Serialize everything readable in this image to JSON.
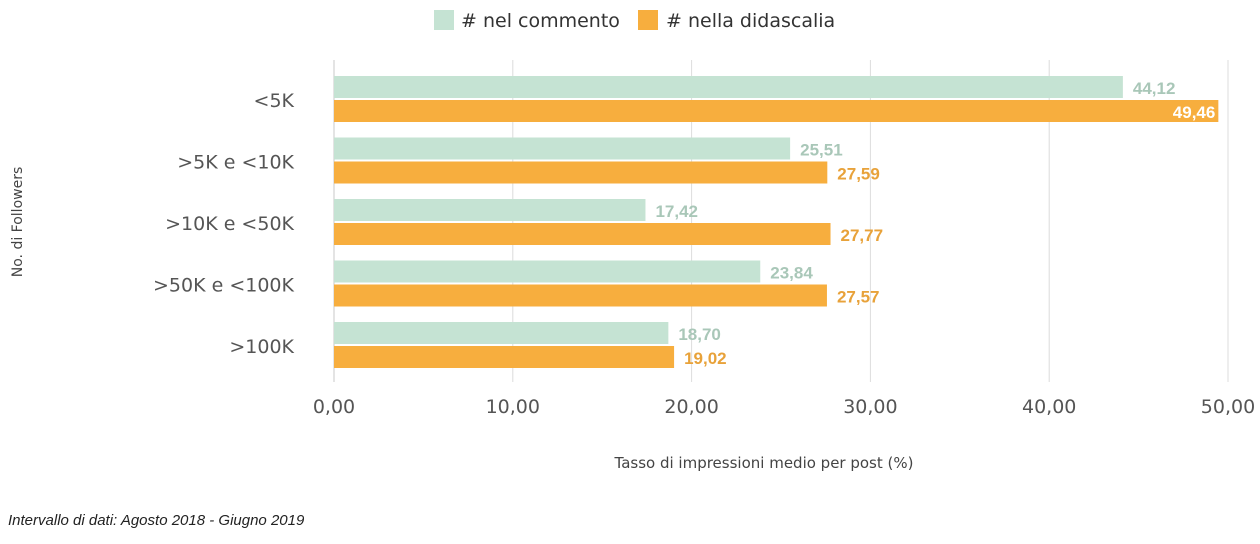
{
  "chart_data": {
    "type": "bar",
    "orientation": "horizontal",
    "categories": [
      "<5K",
      ">5K e <10K",
      ">10K e <50K",
      ">50K e  <100K",
      ">100K"
    ],
    "series": [
      {
        "name": "# nel commento",
        "values": [
          44.12,
          25.51,
          17.42,
          23.84,
          18.7
        ],
        "labels": [
          "44,12",
          "25,51",
          "17,42",
          "23,84",
          "18,70"
        ],
        "color": "#c5e3d3",
        "label_color": "#a9c7b8"
      },
      {
        "name": "# nella didascalia",
        "values": [
          49.46,
          27.59,
          27.77,
          27.57,
          19.02
        ],
        "labels": [
          "49,46",
          "27,59",
          "27,77",
          "27,57",
          "19,02"
        ],
        "color": "#f7ae3e",
        "label_color": "#e8a23a"
      }
    ],
    "xlabel": "Tasso di impressioni medio per post (%)",
    "ylabel": "No. di Followers",
    "xlim": [
      0,
      50
    ],
    "xticks": [
      0,
      10,
      20,
      30,
      40,
      50
    ],
    "xtick_labels": [
      "0,00",
      "10,00",
      "20,00",
      "30,00",
      "40,00",
      "50,00"
    ],
    "grid": "vertical",
    "legend_position": "top-center"
  },
  "footnote": "Intervallo di dati: Agosto 2018 - Giugno 2019"
}
